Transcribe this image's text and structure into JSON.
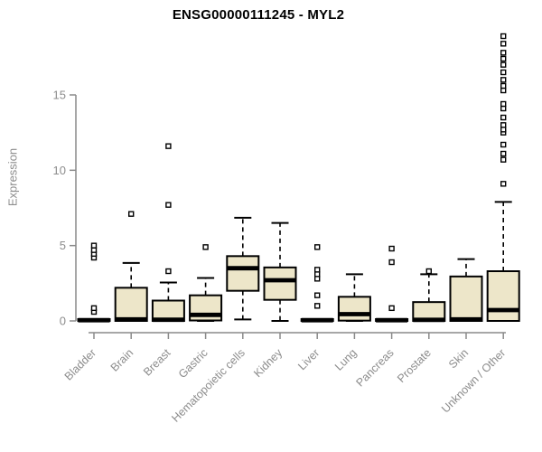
{
  "chart_data": {
    "type": "boxplot",
    "title": "ENSG00000111245 - MYL2",
    "ylabel": "Expression",
    "xlabel": "",
    "ylim": [
      0,
      19.5
    ],
    "yticks": [
      0,
      5,
      10,
      15
    ],
    "grid": false,
    "legend": false,
    "categories": [
      "Bladder",
      "Brain",
      "Breast",
      "Gastric",
      "Hematopoietic cells",
      "Kidney",
      "Liver",
      "Lung",
      "Pancreas",
      "Prostate",
      "Skin",
      "Unknown / Other"
    ],
    "boxes": [
      {
        "category": "Bladder",
        "whisker_low": 0,
        "q1": 0,
        "median": 0.05,
        "q3": 0.12,
        "whisker_high": 0.12,
        "outliers": [
          0.6,
          0.85,
          4.2,
          4.45,
          4.7,
          5.0
        ]
      },
      {
        "category": "Brain",
        "whisker_low": 0,
        "q1": 0,
        "median": 0.1,
        "q3": 2.2,
        "whisker_high": 3.85,
        "outliers": [
          7.1
        ]
      },
      {
        "category": "Breast",
        "whisker_low": 0,
        "q1": 0,
        "median": 0.08,
        "q3": 1.35,
        "whisker_high": 2.55,
        "outliers": [
          3.3,
          7.7,
          11.6
        ]
      },
      {
        "category": "Gastric",
        "whisker_low": 0,
        "q1": 0.03,
        "median": 0.4,
        "q3": 1.7,
        "whisker_high": 2.85,
        "outliers": [
          4.9
        ]
      },
      {
        "category": "Hematopoietic cells",
        "whisker_low": 0.1,
        "q1": 2.0,
        "median": 3.5,
        "q3": 4.3,
        "whisker_high": 6.85,
        "outliers": []
      },
      {
        "category": "Kidney",
        "whisker_low": 0,
        "q1": 1.4,
        "median": 2.7,
        "q3": 3.55,
        "whisker_high": 6.5,
        "outliers": []
      },
      {
        "category": "Liver",
        "whisker_low": 0,
        "q1": 0,
        "median": 0.05,
        "q3": 0.12,
        "whisker_high": 0.12,
        "outliers": [
          1.0,
          1.7,
          2.8,
          3.1,
          3.4,
          4.9
        ]
      },
      {
        "category": "Lung",
        "whisker_low": 0,
        "q1": 0.02,
        "median": 0.45,
        "q3": 1.6,
        "whisker_high": 3.1,
        "outliers": []
      },
      {
        "category": "Pancreas",
        "whisker_low": 0,
        "q1": 0,
        "median": 0.05,
        "q3": 0.12,
        "whisker_high": 0.12,
        "outliers": [
          0.85,
          3.9,
          4.8
        ]
      },
      {
        "category": "Prostate",
        "whisker_low": 0,
        "q1": 0,
        "median": 0.07,
        "q3": 1.25,
        "whisker_high": 3.1,
        "outliers": [
          3.3
        ]
      },
      {
        "category": "Skin",
        "whisker_low": 0,
        "q1": 0,
        "median": 0.1,
        "q3": 2.95,
        "whisker_high": 4.1,
        "outliers": []
      },
      {
        "category": "Unknown / Other",
        "whisker_low": 0,
        "q1": 0,
        "median": 0.72,
        "q3": 3.3,
        "whisker_high": 7.9,
        "outliers": [
          9.1,
          10.7,
          11.1,
          11.7,
          12.5,
          12.7,
          13.0,
          13.5,
          14.1,
          14.4,
          15.3,
          15.6,
          16.0,
          16.5,
          17.0,
          17.4,
          17.8,
          18.4,
          18.9
        ]
      }
    ],
    "colors": {
      "box_fill": "#EDE6C9",
      "box_stroke": "#000000",
      "median": "#000000",
      "whisker": "#000000",
      "axis": "#8A8A8A",
      "tick_text": "#8C8C8C",
      "title_text": "#000000",
      "background": "#FFFFFF"
    }
  }
}
